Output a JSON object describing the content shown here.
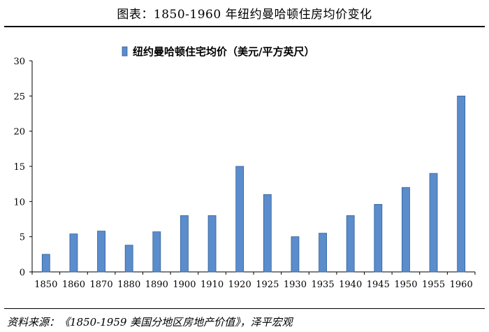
{
  "header": {
    "title": "图表：1850-1960 年纽约曼哈顿住房均价变化"
  },
  "footer": {
    "source": "资料来源：《1850-1959 美国分地区房地产价值》，泽平宏观"
  },
  "colors": {
    "bar_fill": "#5b8ccc",
    "bar_edge": "#2f5f9a",
    "axis": "#000000"
  },
  "chart_data": {
    "type": "bar",
    "title": "",
    "xlabel": "",
    "ylabel": "",
    "ylim": [
      0,
      30
    ],
    "yticks": [
      0,
      5,
      10,
      15,
      20,
      25,
      30
    ],
    "grid": false,
    "legend_position": "top-center",
    "categories": [
      "1850",
      "1860",
      "1870",
      "1880",
      "1890",
      "1900",
      "1910",
      "1920",
      "1925",
      "1930",
      "1935",
      "1940",
      "1945",
      "1950",
      "1955",
      "1960"
    ],
    "series": [
      {
        "name": "纽约曼哈顿住宅均价（美元/平方英尺）",
        "values": [
          2.5,
          5.4,
          5.8,
          3.8,
          5.7,
          8.0,
          8.0,
          15.0,
          11.0,
          5.0,
          5.5,
          8.0,
          9.6,
          12.0,
          14.0,
          25.0
        ]
      }
    ]
  }
}
